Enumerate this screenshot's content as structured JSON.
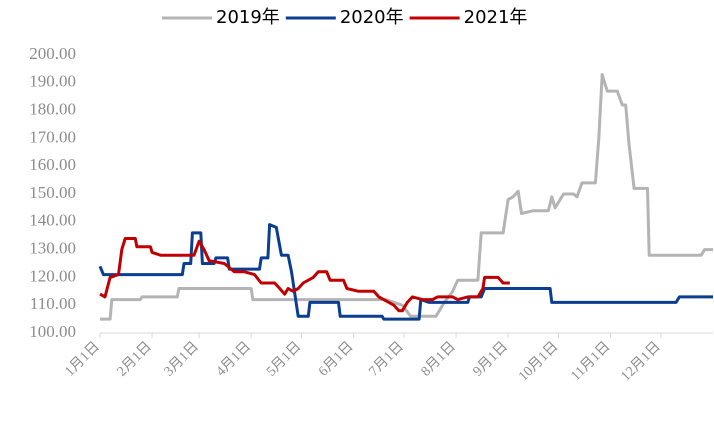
{
  "chart_data": {
    "type": "line",
    "xlim": [
      0,
      365
    ],
    "xticks": [
      {
        "value": 0,
        "label": "1月1日"
      },
      {
        "value": 31,
        "label": "2月1日"
      },
      {
        "value": 59,
        "label": "3月1日"
      },
      {
        "value": 90,
        "label": "4月1日"
      },
      {
        "value": 120,
        "label": "5月1日"
      },
      {
        "value": 151,
        "label": "6月1日"
      },
      {
        "value": 181,
        "label": "7月1日"
      },
      {
        "value": 212,
        "label": "8月1日"
      },
      {
        "value": 243,
        "label": "9月1日"
      },
      {
        "value": 273,
        "label": "10月1日"
      },
      {
        "value": 304,
        "label": "11月1日"
      },
      {
        "value": 334,
        "label": "12月1日"
      }
    ],
    "ylim": [
      100,
      200
    ],
    "yticks": [
      {
        "value": 100,
        "label": "100.00"
      },
      {
        "value": 110,
        "label": "110.00"
      },
      {
        "value": 120,
        "label": "120.00"
      },
      {
        "value": 130,
        "label": "130.00"
      },
      {
        "value": 140,
        "label": "140.00"
      },
      {
        "value": 150,
        "label": "150.00"
      },
      {
        "value": 160,
        "label": "160.00"
      },
      {
        "value": 170,
        "label": "170.00"
      },
      {
        "value": 180,
        "label": "180.00"
      },
      {
        "value": 190,
        "label": "190.00"
      },
      {
        "value": 200,
        "label": "200.00"
      }
    ],
    "legend": "top",
    "series": [
      {
        "name": "2019年",
        "color": "#b4b4b4",
        "x": [
          0,
          6,
          7,
          24,
          25,
          46,
          47,
          90,
          91,
          170,
          180,
          185,
          200,
          205,
          210,
          213,
          225,
          227,
          240,
          243,
          246,
          249,
          251,
          258,
          267,
          269,
          271,
          276,
          282,
          284,
          287,
          295,
          297,
          299,
          302,
          308,
          311,
          313,
          315,
          318,
          326,
          327,
          358,
          360,
          365
        ],
        "values": [
          105,
          105,
          112,
          112,
          113,
          113,
          116,
          116,
          112,
          112,
          110,
          106,
          106,
          111,
          115,
          119,
          119,
          136,
          136,
          148,
          149,
          151,
          143,
          144,
          144,
          149,
          145,
          150,
          150,
          149,
          154,
          154,
          170,
          193,
          187,
          187,
          182,
          182,
          168,
          152,
          152,
          128,
          128,
          130,
          130
        ]
      },
      {
        "name": "2020年",
        "color": "#0b3d91",
        "x": [
          0,
          2,
          49,
          50,
          54,
          55,
          60,
          61,
          68,
          69,
          76,
          77,
          95,
          96,
          100,
          101,
          105,
          108,
          112,
          114,
          118,
          124,
          125,
          142,
          143,
          168,
          169,
          190,
          191,
          196,
          219,
          220,
          227,
          229,
          268,
          269,
          343,
          345,
          365
        ],
        "values": [
          124,
          121,
          121,
          125,
          125,
          136,
          136,
          125,
          125,
          127,
          127,
          123,
          123,
          127,
          127,
          139,
          138,
          128,
          128,
          122,
          106,
          106,
          111,
          111,
          106,
          106,
          105,
          105,
          112,
          111,
          111,
          113,
          113,
          116,
          116,
          111,
          111,
          113,
          113
        ]
      },
      {
        "name": "2021年",
        "color": "#c00000",
        "x": [
          0,
          3,
          6,
          11,
          13,
          15,
          21,
          22,
          30,
          31,
          36,
          56,
          59,
          62,
          65,
          74,
          80,
          86,
          92,
          96,
          104,
          107,
          110,
          112,
          115,
          118,
          121,
          127,
          130,
          135,
          137,
          145,
          147,
          154,
          163,
          166,
          172,
          175,
          178,
          180,
          183,
          186,
          192,
          198,
          201,
          210,
          213,
          219,
          225,
          228,
          229,
          237,
          240,
          244
        ],
        "values": [
          114,
          113,
          120,
          121,
          130,
          134,
          134,
          131,
          131,
          129,
          128,
          128,
          133,
          130,
          126,
          125,
          122,
          122,
          121,
          118,
          118,
          116,
          114,
          116,
          115,
          116,
          118,
          120,
          122,
          122,
          119,
          119,
          116,
          115,
          115,
          113,
          111,
          110,
          108,
          108,
          111,
          113,
          112,
          112,
          113,
          113,
          112,
          113,
          113,
          116,
          120,
          120,
          118,
          118
        ]
      }
    ]
  }
}
